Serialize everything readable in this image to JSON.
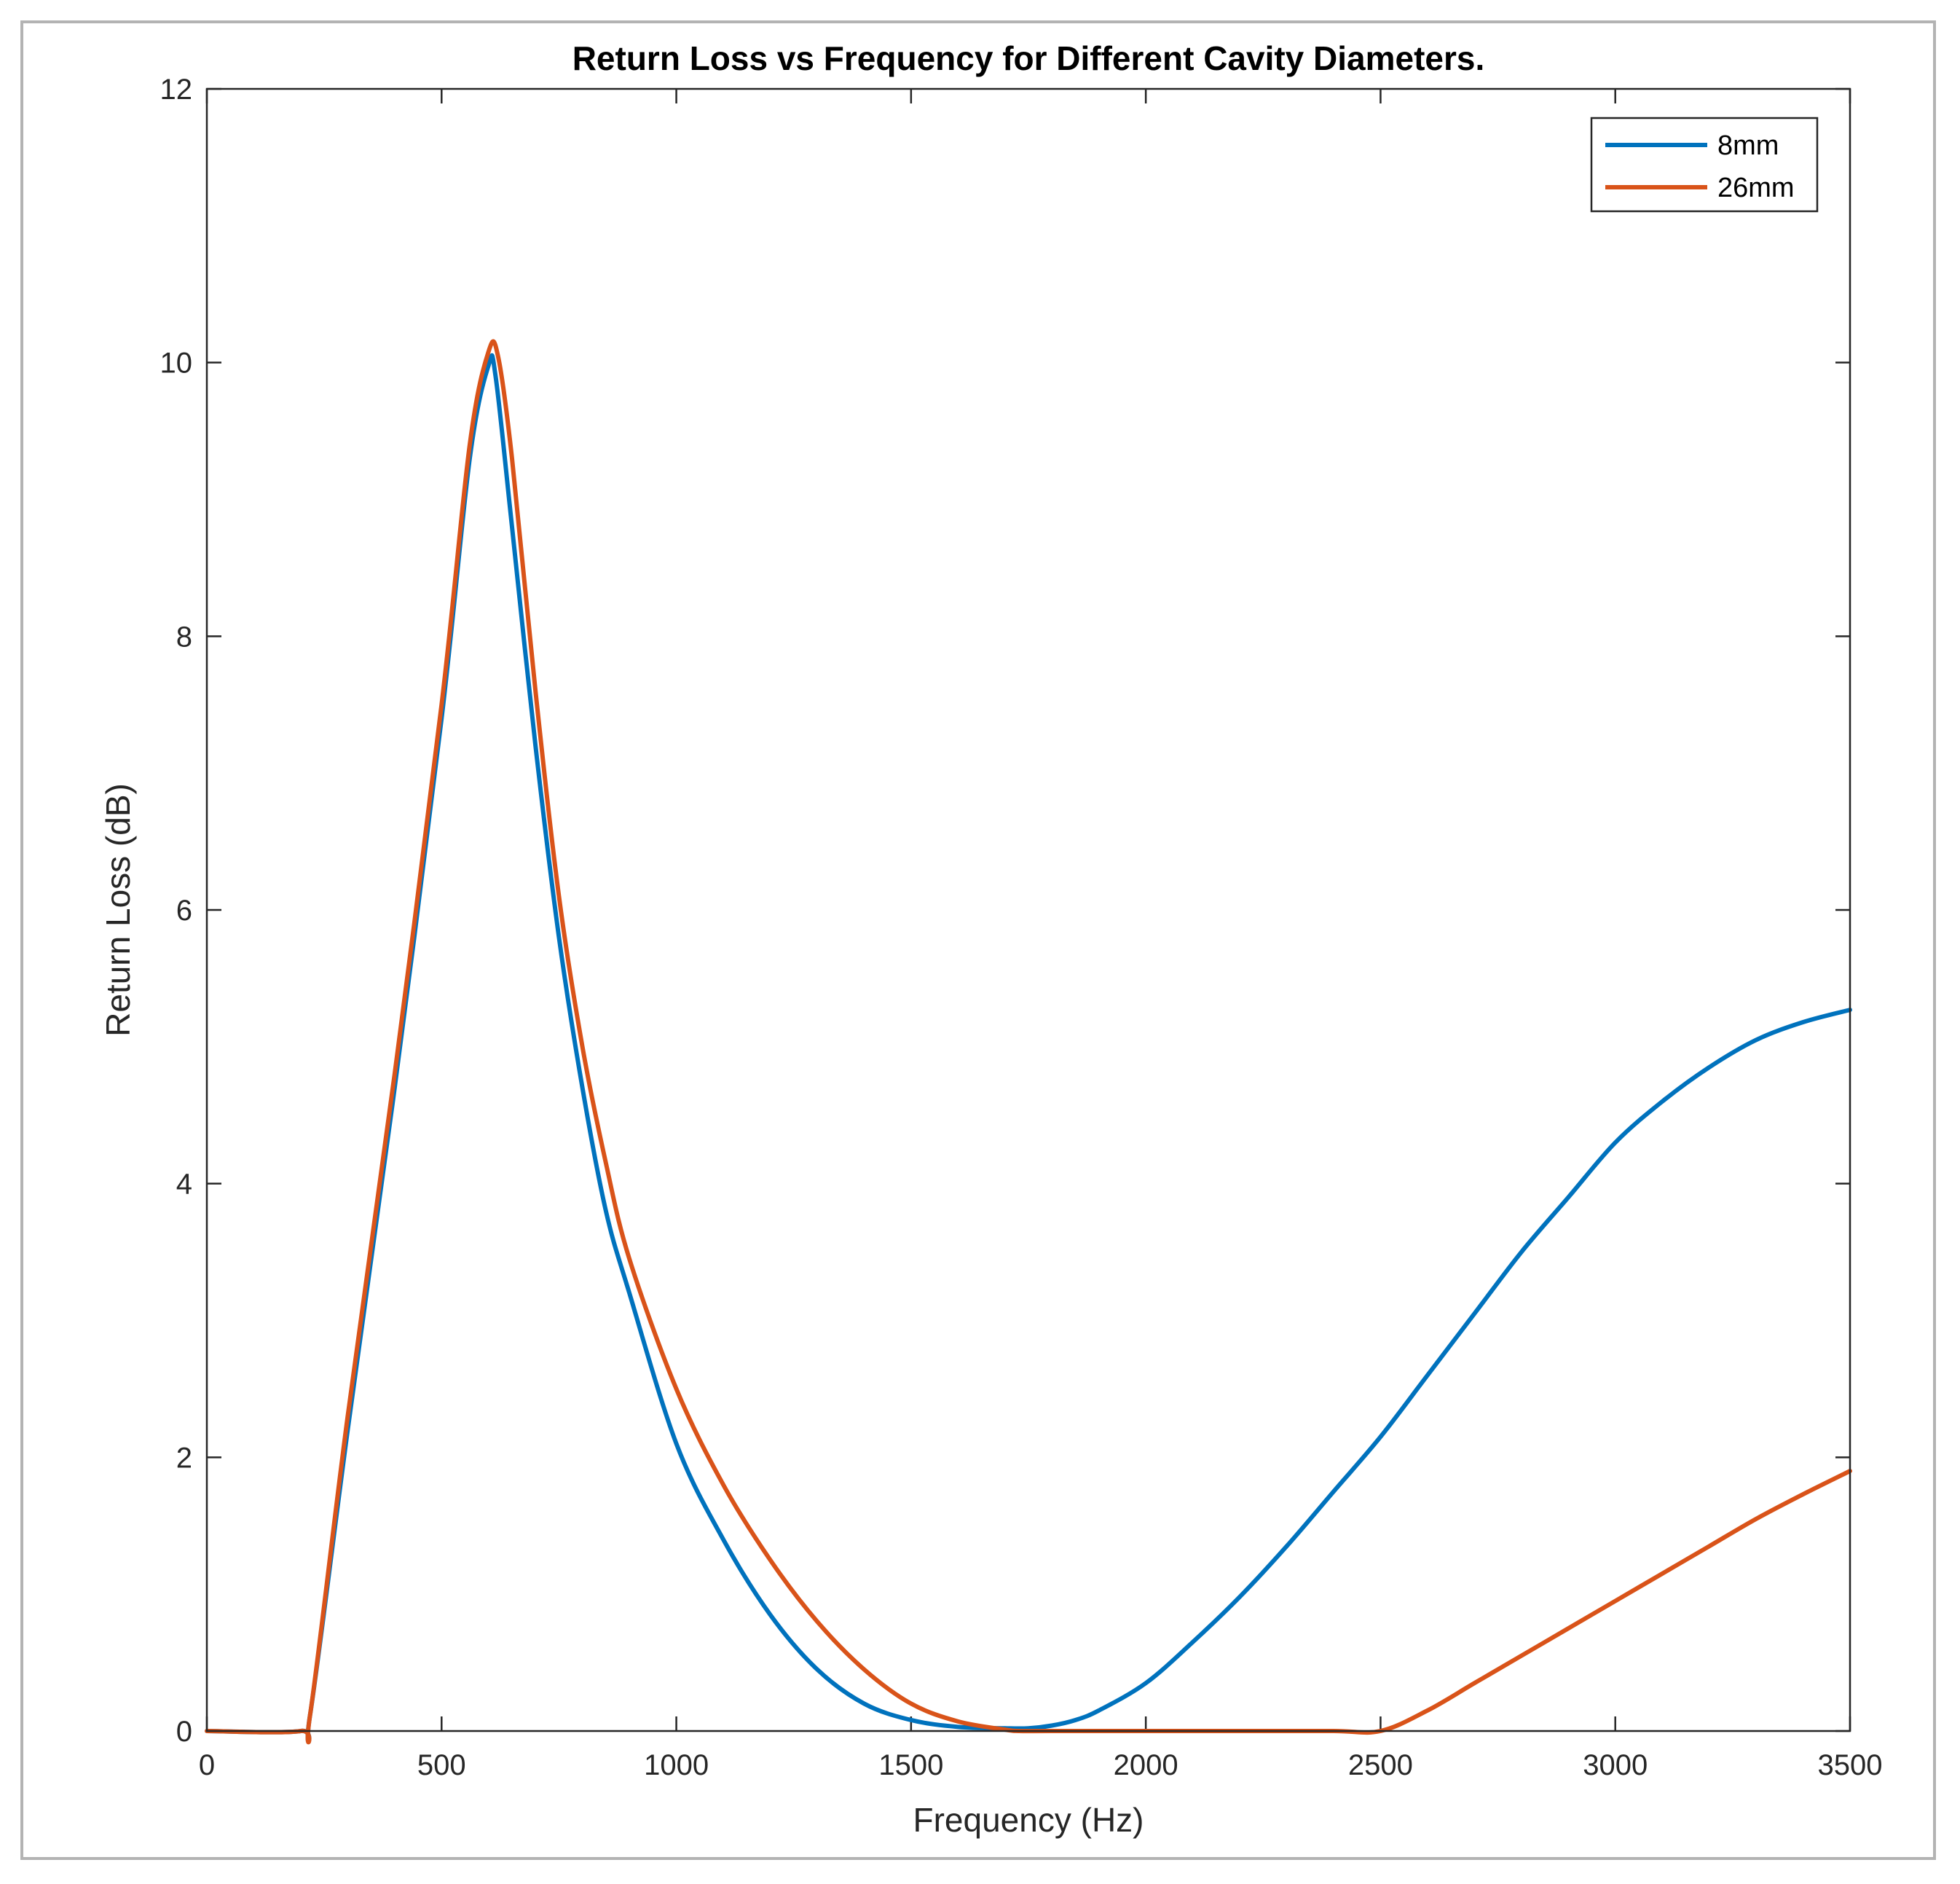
{
  "chart_data": {
    "type": "line",
    "title": "Return Loss vs Frequency for Different Cavity Diameters.",
    "xlabel": "Frequency (Hz)",
    "ylabel": "Return Loss (dB)",
    "xlim": [
      0,
      3500
    ],
    "ylim": [
      0,
      12
    ],
    "xticks": [
      0,
      500,
      1000,
      1500,
      2000,
      2500,
      3000,
      3500
    ],
    "yticks": [
      0,
      2,
      4,
      6,
      8,
      10,
      12
    ],
    "legend_position": "top-right",
    "grid": false,
    "series": [
      {
        "name": "8mm",
        "color": "#0072BD",
        "x": [
          0,
          200,
          220,
          300,
          400,
          500,
          560,
          600,
          615,
          650,
          700,
          750,
          800,
          850,
          900,
          1000,
          1100,
          1200,
          1300,
          1400,
          1500,
          1600,
          1700,
          1750,
          1800,
          1850,
          1900,
          2000,
          2100,
          2200,
          2300,
          2400,
          2500,
          2600,
          2700,
          2800,
          2900,
          3000,
          3100,
          3200,
          3300,
          3400,
          3500
        ],
        "y": [
          0,
          0,
          0.12,
          2.2,
          4.7,
          7.4,
          9.3,
          9.98,
          9.9,
          8.8,
          7.2,
          5.8,
          4.7,
          3.8,
          3.2,
          2.1,
          1.4,
          0.85,
          0.45,
          0.2,
          0.08,
          0.03,
          0.02,
          0.02,
          0.04,
          0.08,
          0.15,
          0.35,
          0.65,
          0.98,
          1.35,
          1.75,
          2.15,
          2.6,
          3.05,
          3.5,
          3.9,
          4.3,
          4.6,
          4.85,
          5.05,
          5.18,
          5.27
        ]
      },
      {
        "name": "26mm",
        "color": "#D95319",
        "x": [
          0,
          200,
          220,
          300,
          400,
          500,
          560,
          600,
          620,
          650,
          700,
          750,
          800,
          850,
          900,
          1000,
          1100,
          1200,
          1300,
          1400,
          1500,
          1600,
          1700,
          1730,
          1800,
          2000,
          2200,
          2400,
          2500,
          2600,
          2700,
          2800,
          2900,
          3000,
          3100,
          3200,
          3300,
          3400,
          3500
        ],
        "y": [
          0,
          0,
          0.12,
          2.3,
          4.8,
          7.5,
          9.4,
          10.08,
          10.05,
          9.3,
          7.6,
          6.1,
          5.0,
          4.15,
          3.45,
          2.5,
          1.8,
          1.25,
          0.8,
          0.45,
          0.2,
          0.07,
          0.01,
          0,
          0,
          0,
          0,
          0,
          0,
          0.15,
          0.35,
          0.55,
          0.75,
          0.95,
          1.15,
          1.35,
          1.55,
          1.73,
          1.9
        ]
      }
    ]
  }
}
